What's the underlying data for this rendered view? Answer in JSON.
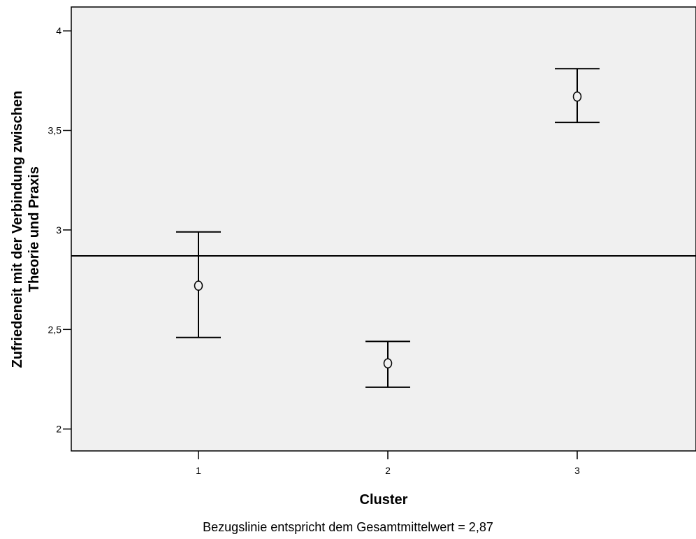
{
  "chart_data": {
    "type": "errorbar",
    "xlabel": "Cluster",
    "ylabel_lines": [
      "Zufriedeneit mit der Verbindung zwischen",
      "Theorie und Praxis"
    ],
    "categories": [
      "1",
      "2",
      "3"
    ],
    "means": [
      2.72,
      2.33,
      3.67
    ],
    "lower": [
      2.46,
      2.21,
      3.54
    ],
    "upper": [
      2.99,
      2.44,
      3.81
    ],
    "reference_line": 2.87,
    "ylim": [
      1.89,
      4.12
    ],
    "yticks": [
      2,
      2.5,
      3,
      3.5,
      4
    ],
    "ytick_labels": [
      "2",
      "2,5",
      "3",
      "3,5",
      "4"
    ],
    "footnote": "Bezugslinie entspricht dem Gesamtmittelwert = 2,87",
    "plot_background": "#f0f0f0",
    "grid": false,
    "legend": "none"
  }
}
